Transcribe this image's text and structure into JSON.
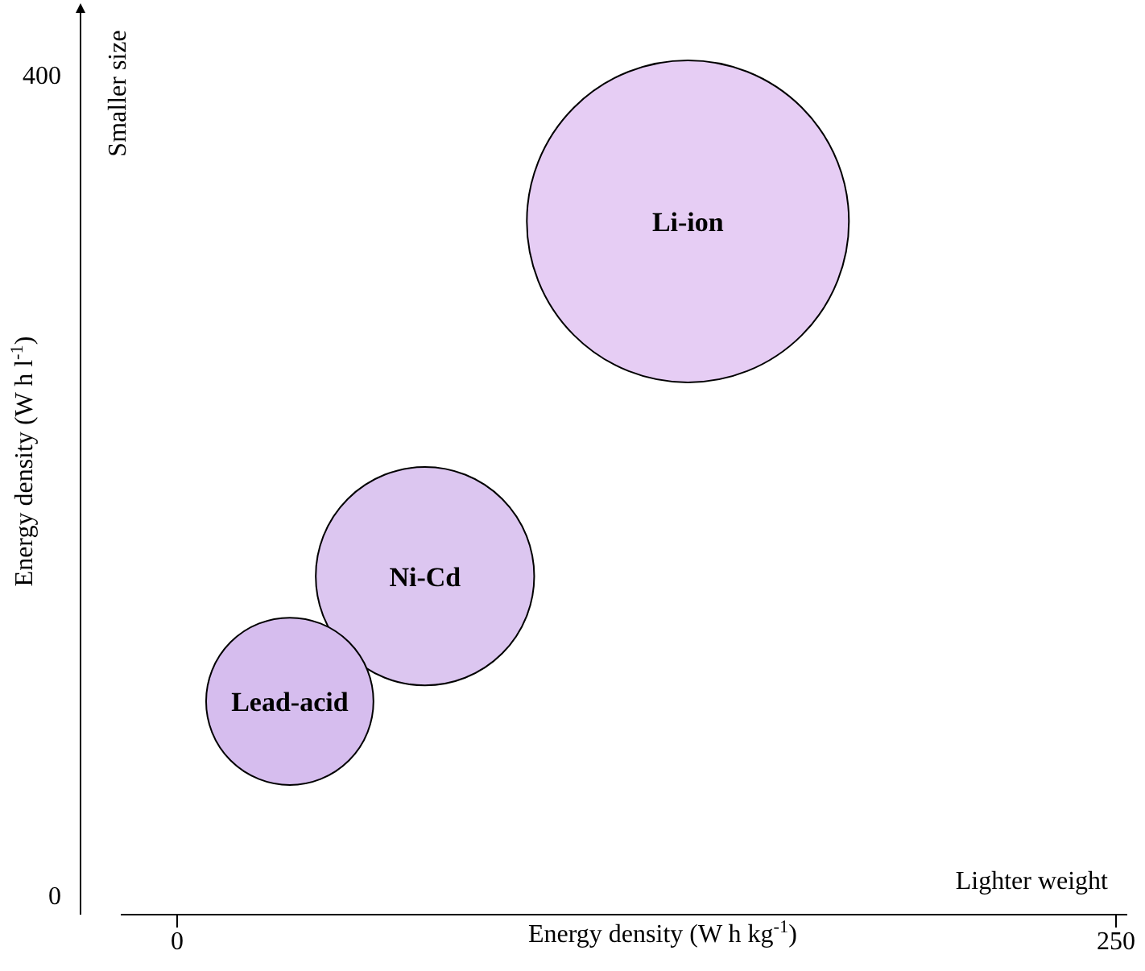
{
  "chart_data": {
    "type": "bubble",
    "xlabel": "Energy density (W h kg$^{-1}$)",
    "ylabel": "Energy density (W h l$^{-1}$)",
    "xlim": [
      -15,
      253
    ],
    "ylim": [
      -9,
      433
    ],
    "xticks": [
      0,
      250
    ],
    "yticks": [
      0,
      400
    ],
    "grid": false,
    "annotations": [
      "Smaller size",
      "Lighter weight"
    ],
    "series": [
      {
        "name": "Lead-acid",
        "color": "#d6bdee",
        "x": [
          30
        ],
        "values": [
          95
        ],
        "sizes": [
          0.27
        ]
      },
      {
        "name": "Ni-Cd",
        "color": "#dcc6f0",
        "x": [
          66
        ],
        "values": [
          156
        ],
        "sizes": [
          0.46
        ]
      },
      {
        "name": "Li-ion",
        "color": "#e6cdf4",
        "x": [
          136
        ],
        "values": [
          329
        ],
        "sizes": [
          1
        ]
      }
    ]
  }
}
